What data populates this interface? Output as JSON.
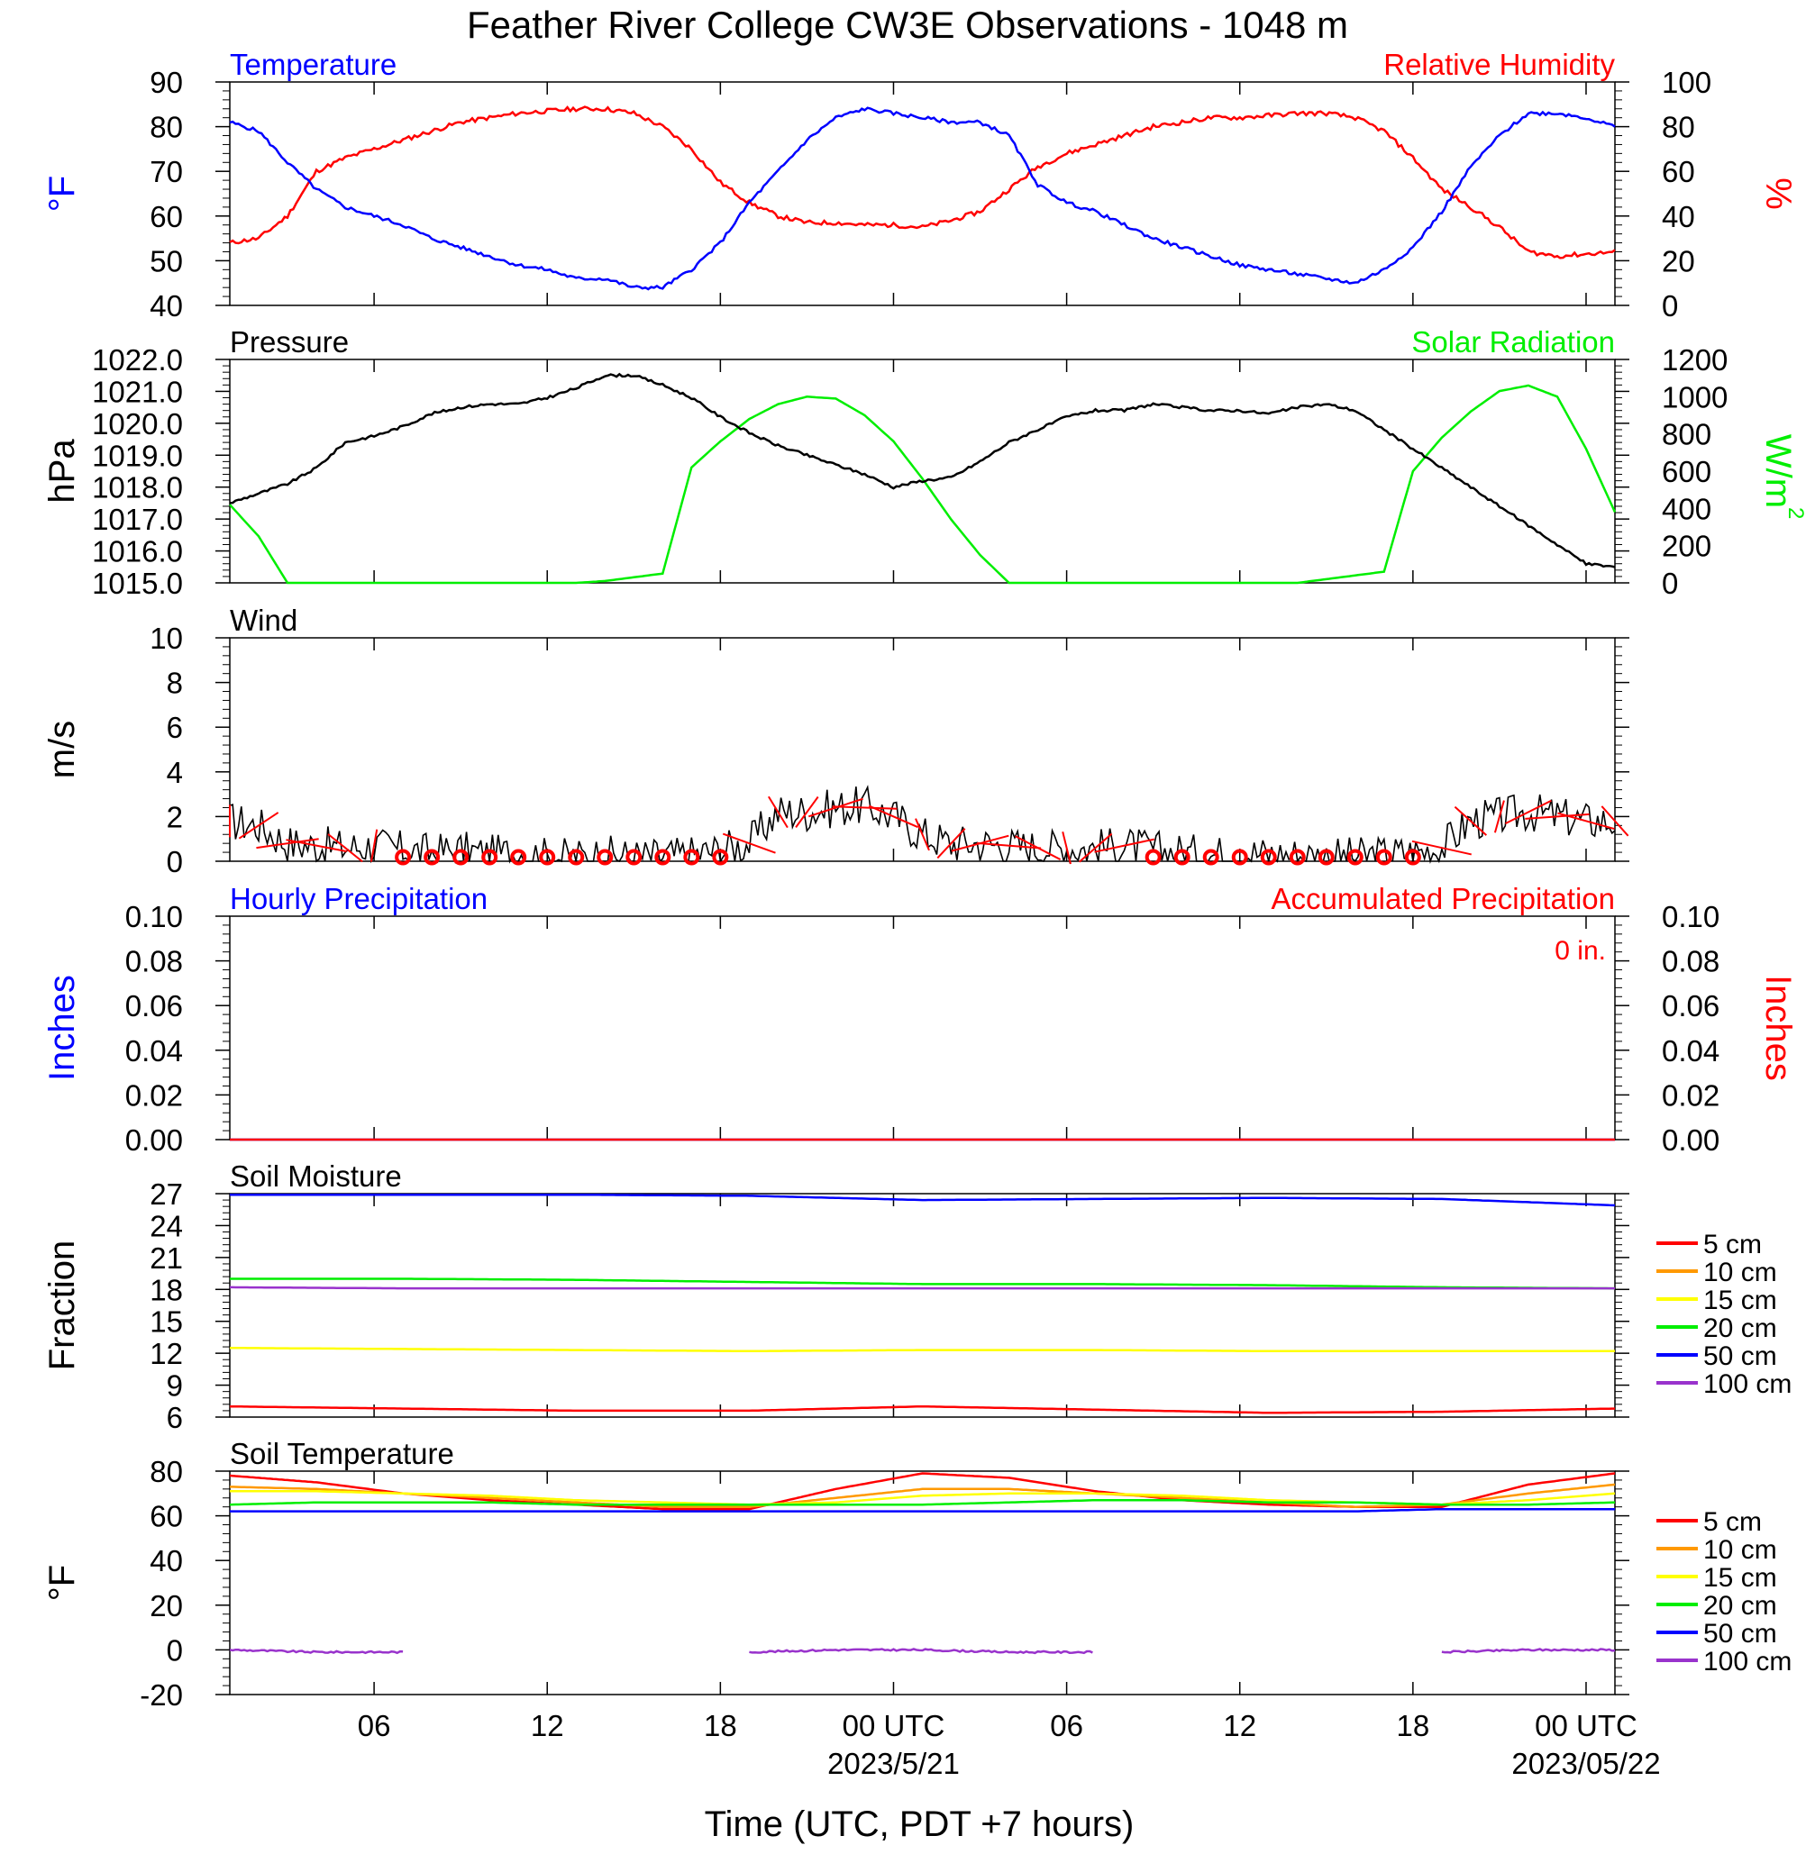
{
  "title": "Feather River College CW3E Observations - 1048 m",
  "x_axis": {
    "label": "Time (UTC, PDT +7 hours)",
    "ticks": [
      {
        "hour": 6,
        "label": "06"
      },
      {
        "hour": 12,
        "label": "12"
      },
      {
        "hour": 18,
        "label": "18"
      },
      {
        "hour": 24,
        "label": "00 UTC"
      },
      {
        "hour": 30,
        "label": "06"
      },
      {
        "hour": 36,
        "label": "12"
      },
      {
        "hour": 42,
        "label": "18"
      },
      {
        "hour": 48,
        "label": "00 UTC"
      }
    ],
    "dates": [
      {
        "hour": 24,
        "label": "2023/5/21"
      },
      {
        "hour": 48,
        "label": "2023/05/22"
      }
    ],
    "range_hours": [
      1,
      49
    ]
  },
  "panels": {
    "temp_rh": {
      "left_title": "Temperature",
      "right_title": "Relative Humidity",
      "left_unit": "°F",
      "right_unit": "%",
      "left_ticks": [
        "40",
        "50",
        "60",
        "70",
        "80",
        "90"
      ],
      "right_ticks": [
        "0",
        "20",
        "40",
        "60",
        "80",
        "100"
      ]
    },
    "pressure_solar": {
      "left_title": "Pressure",
      "right_title": "Solar Radiation",
      "left_unit": "hPa",
      "right_unit": "W/m",
      "left_ticks": [
        "1015.0",
        "1016.0",
        "1017.0",
        "1018.0",
        "1019.0",
        "1020.0",
        "1021.0",
        "1022.0"
      ],
      "right_ticks": [
        "0",
        "200",
        "400",
        "600",
        "800",
        "1000",
        "1200"
      ]
    },
    "wind": {
      "left_title": "Wind",
      "left_unit": "m/s",
      "left_ticks": [
        "0",
        "2",
        "4",
        "6",
        "8",
        "10"
      ]
    },
    "precip": {
      "left_title": "Hourly Precipitation",
      "right_title": "Accumulated Precipitation",
      "left_unit": "Inches",
      "right_unit": "Inches",
      "accum_text": "0 in.",
      "left_ticks": [
        "0.00",
        "0.02",
        "0.04",
        "0.06",
        "0.08",
        "0.10"
      ],
      "right_ticks": [
        "0.00",
        "0.02",
        "0.04",
        "0.06",
        "0.08",
        "0.10"
      ]
    },
    "soil_moisture": {
      "left_title": "Soil Moisture",
      "left_unit": "Fraction",
      "left_ticks": [
        "6",
        "9",
        "12",
        "15",
        "18",
        "21",
        "24",
        "27"
      ],
      "legend": [
        "5 cm",
        "10 cm",
        "15 cm",
        "20 cm",
        "50 cm",
        "100 cm"
      ]
    },
    "soil_temp": {
      "left_title": "Soil Temperature",
      "left_unit": "°F",
      "left_ticks": [
        "-20",
        "0",
        "20",
        "40",
        "60",
        "80"
      ],
      "legend": [
        "5 cm",
        "10 cm",
        "15 cm",
        "20 cm",
        "50 cm",
        "100 cm"
      ]
    }
  },
  "colors": {
    "blue": "#0000ff",
    "red": "#ff0000",
    "green": "#00ee00",
    "black": "#000000",
    "orange": "#ff9900",
    "yellow": "#ffff00",
    "purple": "#9933cc"
  },
  "chart_data": [
    {
      "type": "line",
      "title": "Temperature / Relative Humidity",
      "x_hours": [
        1,
        2,
        3,
        4,
        5,
        6,
        7,
        8,
        9,
        10,
        11,
        12,
        13,
        14,
        15,
        16,
        17,
        18,
        19,
        20,
        21,
        22,
        23,
        24,
        25,
        26,
        27,
        28,
        29,
        30,
        31,
        32,
        33,
        34,
        35,
        36,
        37,
        38,
        39,
        40,
        41,
        42,
        43,
        44,
        45,
        46,
        47,
        48,
        49
      ],
      "series": [
        {
          "name": "Temperature",
          "axis": "left",
          "unit": "°F",
          "ylim": [
            40,
            90
          ],
          "values": [
            81,
            79,
            72,
            66,
            62,
            60,
            58,
            55,
            53,
            51,
            49,
            48,
            46,
            46,
            44,
            44,
            48,
            54,
            63,
            70,
            77,
            82,
            84,
            83,
            82,
            81,
            81,
            78,
            67,
            63,
            61,
            58,
            55,
            53,
            51,
            49,
            48,
            47,
            46,
            45,
            48,
            53,
            61,
            71,
            78,
            83,
            83,
            82,
            80
          ]
        },
        {
          "name": "Relative Humidity",
          "axis": "right",
          "unit": "%",
          "ylim": [
            0,
            100
          ],
          "values": [
            28,
            30,
            40,
            60,
            66,
            70,
            74,
            78,
            82,
            84,
            86,
            87,
            88,
            88,
            86,
            80,
            70,
            55,
            46,
            40,
            37,
            37,
            36,
            36,
            35,
            38,
            42,
            52,
            62,
            68,
            72,
            76,
            80,
            82,
            84,
            84,
            85,
            86,
            86,
            84,
            78,
            66,
            52,
            44,
            35,
            24,
            22,
            23,
            24
          ]
        }
      ]
    },
    {
      "type": "line",
      "title": "Pressure / Solar Radiation",
      "x_hours": [
        1,
        2,
        3,
        4,
        5,
        6,
        7,
        8,
        9,
        10,
        11,
        12,
        13,
        14,
        15,
        16,
        17,
        18,
        19,
        20,
        21,
        22,
        23,
        24,
        25,
        26,
        27,
        28,
        29,
        30,
        31,
        32,
        33,
        34,
        35,
        36,
        37,
        38,
        39,
        40,
        41,
        42,
        43,
        44,
        45,
        46,
        47,
        48,
        49
      ],
      "series": [
        {
          "name": "Pressure",
          "axis": "left",
          "unit": "hPa",
          "ylim": [
            1015,
            1022
          ],
          "values": [
            1017.5,
            1017.8,
            1018.1,
            1018.6,
            1019.4,
            1019.6,
            1019.9,
            1020.3,
            1020.5,
            1020.6,
            1020.6,
            1020.8,
            1021.1,
            1021.5,
            1021.5,
            1021.2,
            1020.8,
            1020.2,
            1019.7,
            1019.3,
            1019.0,
            1018.7,
            1018.4,
            1018.0,
            1018.2,
            1018.3,
            1018.8,
            1019.4,
            1019.8,
            1020.2,
            1020.4,
            1020.4,
            1020.6,
            1020.5,
            1020.4,
            1020.4,
            1020.3,
            1020.5,
            1020.6,
            1020.4,
            1019.8,
            1019.2,
            1018.6,
            1018.0,
            1017.4,
            1016.8,
            1016.2,
            1015.6,
            1015.5
          ]
        },
        {
          "name": "Solar Radiation",
          "axis": "right",
          "unit": "W/m2",
          "ylim": [
            0,
            1200
          ],
          "values": [
            420,
            250,
            0,
            0,
            0,
            0,
            0,
            0,
            0,
            0,
            0,
            0,
            0,
            10,
            30,
            50,
            620,
            760,
            880,
            960,
            1000,
            990,
            900,
            760,
            560,
            340,
            150,
            0,
            0,
            0,
            0,
            0,
            0,
            0,
            0,
            0,
            0,
            0,
            20,
            40,
            60,
            600,
            780,
            920,
            1030,
            1060,
            1000,
            720,
            380
          ]
        }
      ]
    },
    {
      "type": "line",
      "title": "Wind",
      "x_hours": [
        1,
        2,
        3,
        4,
        5,
        6,
        7,
        8,
        9,
        10,
        11,
        12,
        13,
        14,
        15,
        16,
        17,
        18,
        19,
        20,
        21,
        22,
        23,
        24,
        25,
        26,
        27,
        28,
        29,
        30,
        31,
        32,
        33,
        34,
        35,
        36,
        37,
        38,
        39,
        40,
        41,
        42,
        43,
        44,
        45,
        46,
        47,
        48,
        49
      ],
      "series": [
        {
          "name": "Wind Speed",
          "axis": "left",
          "unit": "m/s",
          "ylim": [
            0,
            10
          ],
          "values": [
            1.8,
            1.6,
            0.8,
            0.7,
            0.6,
            0.7,
            0.5,
            0.4,
            0.5,
            0.3,
            0.4,
            0.2,
            0.2,
            0.3,
            0.2,
            0.2,
            0.3,
            0.5,
            0.8,
            2.2,
            2.2,
            2.4,
            2.5,
            2.0,
            1.2,
            0.8,
            0.8,
            0.7,
            0.6,
            0.6,
            0.6,
            0.7,
            0.5,
            0.4,
            0.3,
            0.4,
            0.3,
            0.3,
            0.2,
            0.2,
            0.3,
            0.4,
            0.6,
            1.8,
            2.0,
            2.2,
            2.0,
            1.8,
            1.8
          ]
        }
      ]
    },
    {
      "type": "line",
      "title": "Precipitation",
      "x_hours": [
        1,
        49
      ],
      "series": [
        {
          "name": "Hourly Precipitation",
          "axis": "left",
          "unit": "Inches",
          "ylim": [
            0,
            0.1
          ],
          "values": [
            0,
            0
          ]
        },
        {
          "name": "Accumulated Precipitation",
          "axis": "right",
          "unit": "Inches",
          "ylim": [
            0,
            0.1
          ],
          "values": [
            0,
            0
          ]
        }
      ]
    },
    {
      "type": "line",
      "title": "Soil Moisture",
      "x_hours": [
        1,
        7,
        13,
        19,
        25,
        31,
        37,
        43,
        49
      ],
      "ylim": [
        6,
        27
      ],
      "series": [
        {
          "name": "5 cm",
          "values": [
            7.0,
            6.8,
            6.6,
            6.6,
            7.0,
            6.7,
            6.4,
            6.5,
            6.8
          ]
        },
        {
          "name": "10 cm",
          "values": []
        },
        {
          "name": "15 cm",
          "values": [
            12.5,
            12.4,
            12.3,
            12.2,
            12.3,
            12.3,
            12.2,
            12.2,
            12.2
          ]
        },
        {
          "name": "20 cm",
          "values": [
            19.0,
            19.0,
            18.9,
            18.7,
            18.5,
            18.5,
            18.4,
            18.2,
            18.1
          ]
        },
        {
          "name": "50 cm",
          "values": [
            26.9,
            26.9,
            26.9,
            26.8,
            26.4,
            26.5,
            26.6,
            26.5,
            25.9
          ]
        },
        {
          "name": "100 cm",
          "values": [
            18.2,
            18.1,
            18.1,
            18.1,
            18.1,
            18.1,
            18.1,
            18.1,
            18.1
          ]
        }
      ]
    },
    {
      "type": "line",
      "title": "Soil Temperature",
      "x_hours": [
        1,
        4,
        7,
        10,
        13,
        16,
        19,
        22,
        25,
        28,
        31,
        34,
        37,
        40,
        43,
        46,
        49
      ],
      "ylim": [
        -20,
        80
      ],
      "series": [
        {
          "name": "5 cm",
          "values": [
            78,
            75,
            70,
            67,
            65,
            63,
            63,
            72,
            79,
            77,
            71,
            67,
            65,
            64,
            64,
            74,
            79
          ]
        },
        {
          "name": "10 cm",
          "values": [
            73,
            72,
            70,
            68,
            66,
            64,
            64,
            68,
            72,
            72,
            70,
            68,
            66,
            64,
            65,
            70,
            74
          ]
        },
        {
          "name": "15 cm",
          "values": [
            71,
            71,
            70,
            69,
            67,
            66,
            65,
            66,
            69,
            70,
            70,
            69,
            67,
            66,
            65,
            67,
            70
          ]
        },
        {
          "name": "20 cm",
          "values": [
            65,
            66,
            66,
            66,
            65,
            65,
            65,
            65,
            65,
            66,
            67,
            67,
            66,
            66,
            65,
            65,
            66
          ]
        },
        {
          "name": "50 cm",
          "values": [
            62,
            62,
            62,
            62,
            62,
            62,
            62,
            62,
            62,
            62,
            62,
            62,
            62,
            62,
            63,
            63,
            63
          ]
        },
        {
          "name": "100 cm",
          "values": [
            0,
            -1,
            -1,
            null,
            null,
            null,
            -1,
            0,
            0,
            -1,
            -1,
            null,
            null,
            null,
            -1,
            0,
            0
          ]
        }
      ]
    }
  ]
}
